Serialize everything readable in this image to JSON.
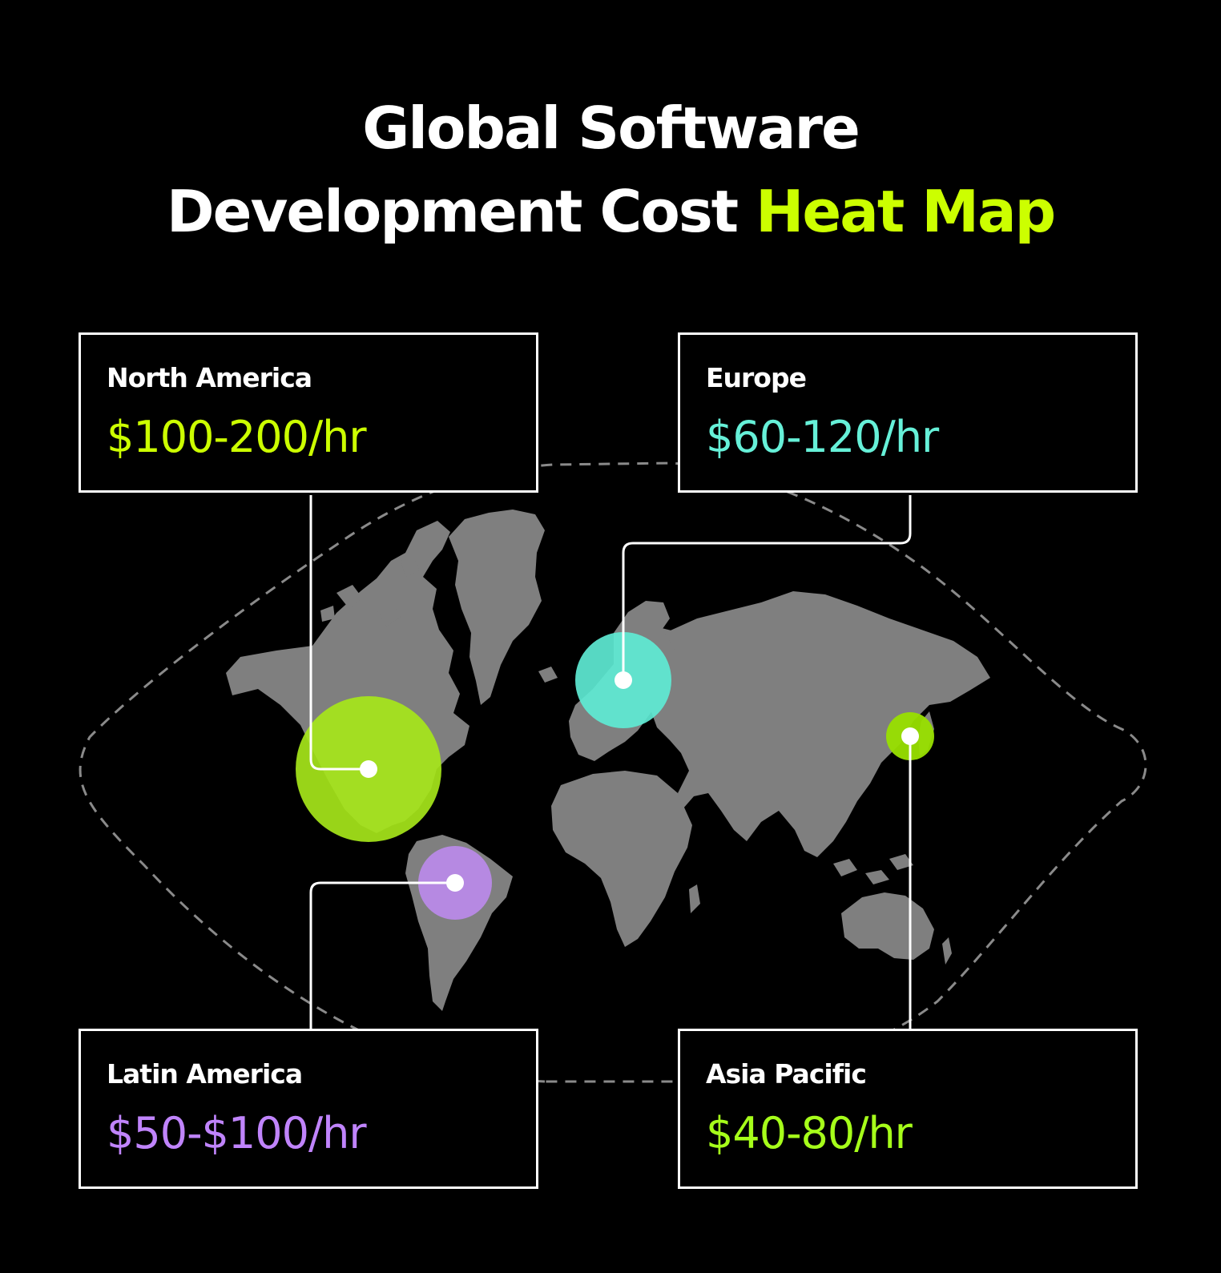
{
  "title": {
    "line1": "Global Software",
    "line2_prefix": "Development Cost ",
    "line2_accent": "Heat Map"
  },
  "colors": {
    "background": "#000000",
    "title_accent": "#ccff00",
    "land": "#7f7f7f",
    "outline": "#ffffff"
  },
  "regions": [
    {
      "key": "north_america",
      "name": "North America",
      "rate": "$100-200/hr",
      "color": "#ccff00",
      "bubble_color": "#a6e61a"
    },
    {
      "key": "europe",
      "name": "Europe",
      "rate": "$60-120/hr",
      "color": "#66f0d8",
      "bubble_color": "#5eead4"
    },
    {
      "key": "latin_america",
      "name": "Latin America",
      "rate": "$50-$100/hr",
      "color": "#c084fc",
      "bubble_color": "#b98ae8"
    },
    {
      "key": "asia_pacific",
      "name": "Asia Pacific",
      "rate": "$40-80/hr",
      "color": "#a6ff1a",
      "bubble_color": "#99e000"
    }
  ]
}
